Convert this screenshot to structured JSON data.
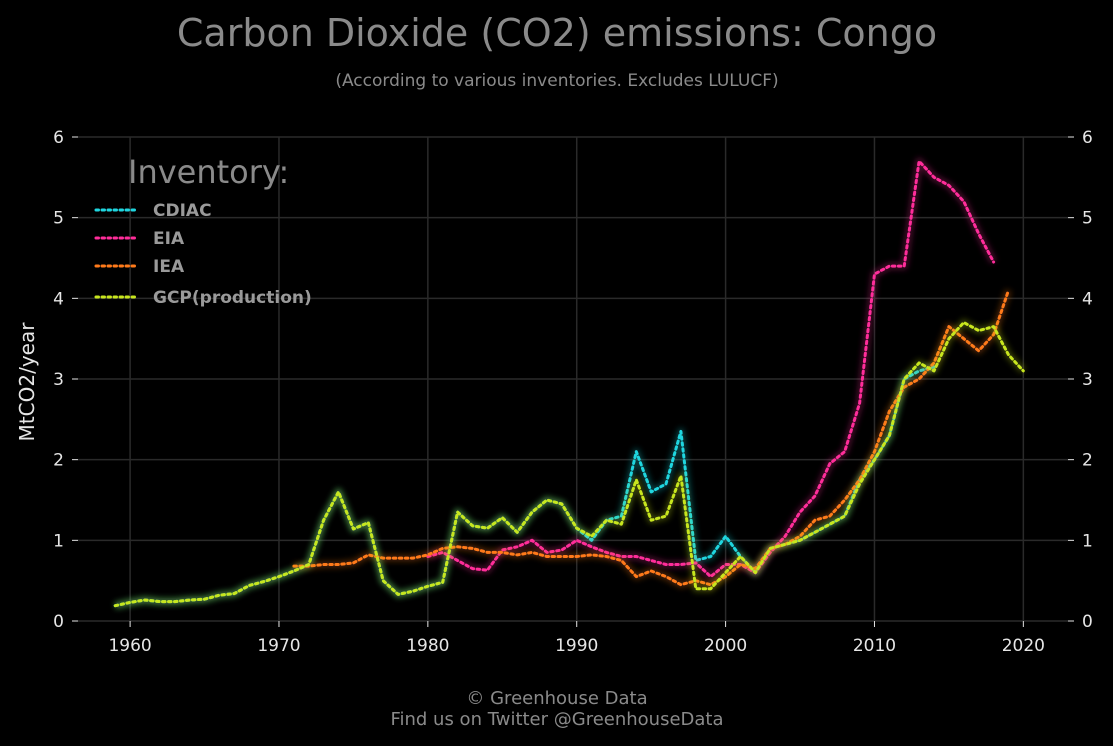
{
  "chart_data": {
    "type": "line",
    "title": "Carbon Dioxide (CO2) emissions: Congo",
    "subtitle": "(According to various inventories. Excludes LULUCF)",
    "ylabel": "MtCO2/year",
    "xlabel": "",
    "xlim": [
      1956.5,
      2023
    ],
    "ylim": [
      0,
      6
    ],
    "xticks": [
      1960,
      1970,
      1980,
      1990,
      2000,
      2010,
      2020
    ],
    "yticks": [
      0,
      1,
      2,
      3,
      4,
      5,
      6
    ],
    "grid": true,
    "legend": {
      "title": "Inventory:",
      "position": "top-left"
    },
    "series": [
      {
        "name": "CDIAC",
        "color": "#1fd6e0",
        "x": [
          1959,
          1960,
          1961,
          1962,
          1963,
          1964,
          1965,
          1966,
          1967,
          1968,
          1969,
          1970,
          1971,
          1972,
          1973,
          1974,
          1975,
          1976,
          1977,
          1978,
          1979,
          1980,
          1981,
          1982,
          1983,
          1984,
          1985,
          1986,
          1987,
          1988,
          1989,
          1990,
          1991,
          1992,
          1993,
          1994,
          1995,
          1996,
          1997,
          1998,
          1999,
          2000,
          2001,
          2002,
          2003,
          2004,
          2005,
          2006,
          2007,
          2008,
          2009,
          2010,
          2011,
          2012,
          2013,
          2014
        ],
        "y": [
          0.19,
          0.23,
          0.26,
          0.24,
          0.24,
          0.26,
          0.27,
          0.32,
          0.34,
          0.44,
          0.49,
          0.55,
          0.62,
          0.7,
          1.25,
          1.6,
          1.14,
          1.22,
          0.5,
          0.33,
          0.37,
          0.43,
          0.48,
          1.35,
          1.18,
          1.15,
          1.28,
          1.1,
          1.35,
          1.5,
          1.45,
          1.15,
          1.0,
          1.25,
          1.3,
          2.1,
          1.6,
          1.7,
          2.35,
          0.75,
          0.8,
          1.05,
          0.8,
          0.6,
          0.9,
          0.95,
          1.0,
          1.1,
          1.2,
          1.3,
          1.75,
          2.0,
          2.3,
          3.0,
          3.1,
          3.15
        ]
      },
      {
        "name": "EIA",
        "color": "#ff2d9a",
        "x": [
          1980,
          1981,
          1982,
          1983,
          1984,
          1985,
          1986,
          1987,
          1988,
          1989,
          1990,
          1991,
          1992,
          1993,
          1994,
          1995,
          1996,
          1997,
          1998,
          1999,
          2000,
          2001,
          2002,
          2003,
          2004,
          2005,
          2006,
          2007,
          2008,
          2009,
          2010,
          2011,
          2012,
          2013,
          2014,
          2015,
          2016,
          2017,
          2018
        ],
        "y": [
          0.8,
          0.85,
          0.75,
          0.65,
          0.63,
          0.88,
          0.92,
          1.0,
          0.85,
          0.88,
          1.0,
          0.92,
          0.85,
          0.8,
          0.8,
          0.75,
          0.7,
          0.7,
          0.72,
          0.55,
          0.7,
          0.7,
          0.6,
          0.85,
          1.05,
          1.35,
          1.55,
          1.95,
          2.1,
          2.7,
          4.3,
          4.4,
          4.4,
          5.7,
          5.5,
          5.4,
          5.2,
          4.8,
          4.45
        ]
      },
      {
        "name": "IEA",
        "color": "#ff7a1a",
        "x": [
          1971,
          1972,
          1973,
          1974,
          1975,
          1976,
          1977,
          1978,
          1979,
          1980,
          1981,
          1982,
          1983,
          1984,
          1985,
          1986,
          1987,
          1988,
          1989,
          1990,
          1991,
          1992,
          1993,
          1994,
          1995,
          1996,
          1997,
          1998,
          1999,
          2000,
          2001,
          2002,
          2003,
          2004,
          2005,
          2006,
          2007,
          2008,
          2009,
          2010,
          2011,
          2012,
          2013,
          2014,
          2015,
          2016,
          2017,
          2018,
          2019
        ],
        "y": [
          0.68,
          0.68,
          0.7,
          0.7,
          0.72,
          0.82,
          0.78,
          0.78,
          0.78,
          0.82,
          0.9,
          0.92,
          0.9,
          0.85,
          0.85,
          0.82,
          0.85,
          0.8,
          0.8,
          0.8,
          0.82,
          0.8,
          0.75,
          0.55,
          0.62,
          0.55,
          0.45,
          0.5,
          0.45,
          0.55,
          0.7,
          0.65,
          0.9,
          0.95,
          1.05,
          1.25,
          1.3,
          1.5,
          1.75,
          2.1,
          2.6,
          2.9,
          3.0,
          3.2,
          3.65,
          3.5,
          3.35,
          3.55,
          4.1
        ]
      },
      {
        "name": "GCP(production)",
        "color": "#c8e61e",
        "x": [
          1959,
          1960,
          1961,
          1962,
          1963,
          1964,
          1965,
          1966,
          1967,
          1968,
          1969,
          1970,
          1971,
          1972,
          1973,
          1974,
          1975,
          1976,
          1977,
          1978,
          1979,
          1980,
          1981,
          1982,
          1983,
          1984,
          1985,
          1986,
          1987,
          1988,
          1989,
          1990,
          1991,
          1992,
          1993,
          1994,
          1995,
          1996,
          1997,
          1998,
          1999,
          2000,
          2001,
          2002,
          2003,
          2004,
          2005,
          2006,
          2007,
          2008,
          2009,
          2010,
          2011,
          2012,
          2013,
          2014,
          2015,
          2016,
          2017,
          2018,
          2019,
          2020
        ],
        "y": [
          0.19,
          0.23,
          0.26,
          0.24,
          0.24,
          0.26,
          0.27,
          0.32,
          0.34,
          0.44,
          0.49,
          0.55,
          0.62,
          0.7,
          1.25,
          1.6,
          1.14,
          1.22,
          0.5,
          0.33,
          0.37,
          0.43,
          0.48,
          1.35,
          1.18,
          1.15,
          1.28,
          1.1,
          1.35,
          1.5,
          1.45,
          1.15,
          1.05,
          1.25,
          1.2,
          1.75,
          1.25,
          1.3,
          1.8,
          0.4,
          0.4,
          0.6,
          0.8,
          0.6,
          0.9,
          0.95,
          1.0,
          1.1,
          1.2,
          1.3,
          1.7,
          2.0,
          2.3,
          3.0,
          3.2,
          3.1,
          3.5,
          3.7,
          3.6,
          3.65,
          3.3,
          3.1
        ]
      }
    ]
  },
  "footer": {
    "credit": "© Greenhouse Data",
    "twitter": "Find us on Twitter @GreenhouseData"
  }
}
